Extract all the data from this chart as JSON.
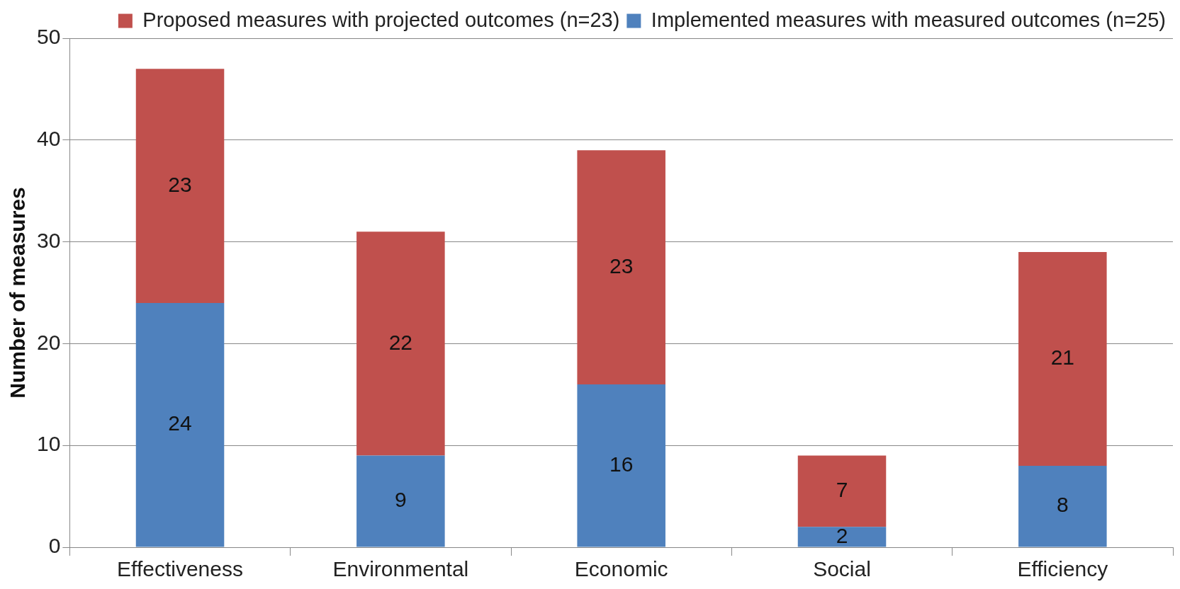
{
  "chart_data": {
    "type": "bar",
    "stacked": true,
    "ylabel": "Number of measures",
    "categories": [
      "Effectiveness",
      "Environmental",
      "Economic",
      "Social",
      "Efficiency"
    ],
    "series": [
      {
        "name": "Implemented measures with measured outcomes (n=25)",
        "color": "#4f81bd",
        "values": [
          24,
          9,
          16,
          2,
          8
        ]
      },
      {
        "name": "Proposed measures with projected outcomes (n=23)",
        "color": "#c0504d",
        "values": [
          23,
          22,
          23,
          7,
          21
        ]
      }
    ],
    "ylim": [
      0,
      50
    ],
    "yticks": [
      0,
      10,
      20,
      30,
      40,
      50
    ],
    "grid": "y",
    "legend": "top right",
    "data_labels": true
  }
}
